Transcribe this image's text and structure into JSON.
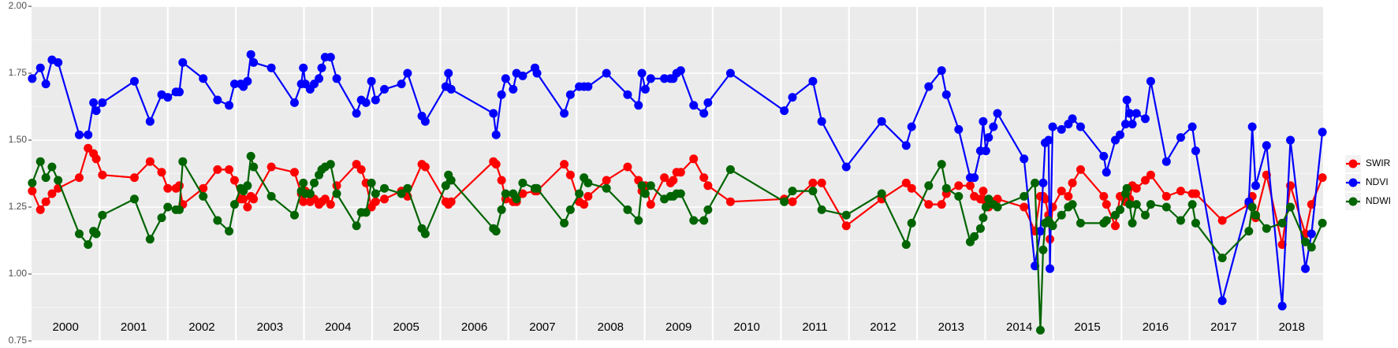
{
  "chart_data": {
    "type": "line",
    "x": [
      2000.01,
      2000.13,
      2000.21,
      2000.3,
      2000.39,
      2000.7,
      2000.83,
      2000.91,
      2000.95,
      2001.04,
      2001.51,
      2001.74,
      2001.91,
      2002.0,
      2002.12,
      2002.17,
      2002.22,
      2002.52,
      2002.73,
      2002.9,
      2002.98,
      2003.07,
      2003.11,
      2003.17,
      2003.22,
      2003.26,
      2003.52,
      2003.86,
      2003.96,
      2003.99,
      2004.02,
      2004.09,
      2004.15,
      2004.22,
      2004.26,
      2004.31,
      2004.39,
      2004.48,
      2004.77,
      2004.84,
      2004.91,
      2004.99,
      2005.05,
      2005.18,
      2005.43,
      2005.52,
      2005.73,
      2005.78,
      2006.08,
      2006.12,
      2006.16,
      2006.78,
      2006.82,
      2006.9,
      2006.96,
      2007.07,
      2007.12,
      2007.21,
      2007.39,
      2007.42,
      2007.82,
      2007.91,
      2008.04,
      2008.11,
      2008.17,
      2008.44,
      2008.75,
      2008.91,
      2008.96,
      2009.01,
      2009.09,
      2009.29,
      2009.38,
      2009.42,
      2009.47,
      2009.53,
      2009.72,
      2009.87,
      2009.93,
      2010.26,
      2011.05,
      2011.17,
      2011.47,
      2011.6,
      2011.96,
      2012.48,
      2012.84,
      2012.92,
      2013.17,
      2013.36,
      2013.43,
      2013.61,
      2013.78,
      2013.84,
      2013.93,
      2013.97,
      2014.01,
      2014.05,
      2014.12,
      2014.18,
      2014.57,
      2014.73,
      2014.81,
      2014.85,
      2014.88,
      2014.93,
      2014.95,
      2014.99,
      2015.12,
      2015.22,
      2015.28,
      2015.4,
      2015.74,
      2015.78,
      2015.91,
      2015.98,
      2016.06,
      2016.08,
      2016.12,
      2016.16,
      2016.22,
      2016.35,
      2016.43,
      2016.66,
      2016.87,
      2017.04,
      2017.09,
      2017.48,
      2017.87,
      2017.92,
      2017.97,
      2018.13,
      2018.36,
      2018.48,
      2018.7,
      2018.79,
      2018.95
    ],
    "series": [
      {
        "name": "SWIR",
        "color": "#ff0000",
        "values": [
          1.31,
          1.24,
          1.27,
          1.3,
          1.32,
          1.36,
          1.47,
          1.45,
          1.43,
          1.37,
          1.36,
          1.42,
          1.38,
          1.32,
          1.32,
          1.33,
          1.26,
          1.32,
          1.39,
          1.39,
          1.35,
          1.28,
          1.28,
          1.25,
          1.29,
          1.28,
          1.4,
          1.38,
          1.3,
          1.27,
          1.31,
          1.27,
          1.28,
          1.26,
          1.27,
          1.28,
          1.26,
          1.33,
          1.41,
          1.39,
          1.34,
          1.25,
          1.27,
          1.28,
          1.31,
          1.29,
          1.41,
          1.4,
          1.27,
          1.26,
          1.27,
          1.42,
          1.41,
          1.35,
          1.28,
          1.27,
          1.27,
          1.3,
          1.31,
          1.31,
          1.41,
          1.37,
          1.27,
          1.26,
          1.29,
          1.35,
          1.4,
          1.35,
          1.31,
          1.33,
          1.26,
          1.36,
          1.34,
          1.35,
          1.38,
          1.38,
          1.43,
          1.36,
          1.33,
          1.27,
          1.28,
          1.27,
          1.34,
          1.34,
          1.18,
          1.28,
          1.34,
          1.32,
          1.26,
          1.26,
          1.3,
          1.33,
          1.33,
          1.29,
          1.28,
          1.31,
          1.27,
          1.25,
          1.27,
          1.28,
          1.25,
          1.16,
          1.29,
          1.29,
          1.28,
          1.22,
          1.13,
          1.25,
          1.31,
          1.29,
          1.34,
          1.39,
          1.29,
          1.26,
          1.18,
          1.29,
          1.27,
          1.29,
          1.28,
          1.33,
          1.32,
          1.35,
          1.37,
          1.29,
          1.31,
          1.3,
          1.3,
          1.2,
          1.26,
          1.29,
          1.21,
          1.37,
          1.11,
          1.33,
          1.15,
          1.26,
          1.36
        ]
      },
      {
        "name": "NDVI",
        "color": "#0000ff",
        "values": [
          1.73,
          1.77,
          1.71,
          1.8,
          1.79,
          1.52,
          1.52,
          1.64,
          1.61,
          1.64,
          1.72,
          1.57,
          1.67,
          1.66,
          1.68,
          1.68,
          1.79,
          1.73,
          1.65,
          1.63,
          1.71,
          1.71,
          1.7,
          1.72,
          1.82,
          1.79,
          1.77,
          1.64,
          1.71,
          1.77,
          1.71,
          1.69,
          1.71,
          1.73,
          1.77,
          1.81,
          1.81,
          1.73,
          1.6,
          1.65,
          1.64,
          1.72,
          1.65,
          1.69,
          1.71,
          1.75,
          1.59,
          1.57,
          1.7,
          1.75,
          1.69,
          1.6,
          1.52,
          1.67,
          1.73,
          1.69,
          1.75,
          1.74,
          1.77,
          1.75,
          1.6,
          1.67,
          1.7,
          1.7,
          1.7,
          1.75,
          1.67,
          1.63,
          1.75,
          1.69,
          1.73,
          1.73,
          1.73,
          1.73,
          1.75,
          1.76,
          1.63,
          1.6,
          1.64,
          1.75,
          1.61,
          1.66,
          1.72,
          1.57,
          1.4,
          1.57,
          1.48,
          1.55,
          1.7,
          1.76,
          1.67,
          1.54,
          1.36,
          1.36,
          1.46,
          1.57,
          1.46,
          1.51,
          1.55,
          1.6,
          1.43,
          1.03,
          1.16,
          1.34,
          1.49,
          1.5,
          1.02,
          1.55,
          1.54,
          1.56,
          1.58,
          1.55,
          1.44,
          1.38,
          1.5,
          1.52,
          1.56,
          1.65,
          1.6,
          1.56,
          1.6,
          1.58,
          1.72,
          1.42,
          1.51,
          1.55,
          1.46,
          0.9,
          1.27,
          1.55,
          1.33,
          1.48,
          0.88,
          1.5,
          1.02,
          1.15,
          1.53
        ]
      },
      {
        "name": "NDWI",
        "color": "#006400",
        "values": [
          1.34,
          1.42,
          1.36,
          1.4,
          1.35,
          1.15,
          1.11,
          1.16,
          1.15,
          1.22,
          1.28,
          1.13,
          1.21,
          1.25,
          1.24,
          1.24,
          1.42,
          1.29,
          1.2,
          1.16,
          1.26,
          1.32,
          1.31,
          1.33,
          1.44,
          1.4,
          1.29,
          1.22,
          1.31,
          1.34,
          1.3,
          1.3,
          1.34,
          1.37,
          1.39,
          1.4,
          1.41,
          1.3,
          1.18,
          1.23,
          1.23,
          1.34,
          1.3,
          1.32,
          1.3,
          1.32,
          1.17,
          1.15,
          1.33,
          1.37,
          1.35,
          1.17,
          1.16,
          1.24,
          1.3,
          1.3,
          1.28,
          1.34,
          1.32,
          1.32,
          1.19,
          1.24,
          1.3,
          1.36,
          1.34,
          1.32,
          1.24,
          1.2,
          1.33,
          1.3,
          1.33,
          1.28,
          1.29,
          1.29,
          1.3,
          1.3,
          1.2,
          1.2,
          1.24,
          1.39,
          1.27,
          1.31,
          1.31,
          1.24,
          1.22,
          1.3,
          1.11,
          1.19,
          1.33,
          1.41,
          1.32,
          1.29,
          1.12,
          1.14,
          1.17,
          1.21,
          1.25,
          1.28,
          1.26,
          1.25,
          1.29,
          1.34,
          0.79,
          1.09,
          1.19,
          1.2,
          1.19,
          1.18,
          1.22,
          1.25,
          1.26,
          1.19,
          1.19,
          1.2,
          1.22,
          1.24,
          1.3,
          1.32,
          1.26,
          1.19,
          1.26,
          1.22,
          1.26,
          1.25,
          1.2,
          1.26,
          1.19,
          1.06,
          1.16,
          1.25,
          1.22,
          1.17,
          1.19,
          1.25,
          1.12,
          1.1,
          1.19
        ]
      }
    ],
    "xlim": [
      2000,
      2018.96
    ],
    "xticks": [
      2001,
      2002,
      2003,
      2004,
      2005,
      2006,
      2007,
      2008,
      2009,
      2010,
      2011,
      2012,
      2013,
      2014,
      2015,
      2016,
      2017,
      2018
    ],
    "year_labels": [
      2000,
      2001,
      2002,
      2003,
      2004,
      2005,
      2006,
      2007,
      2008,
      2009,
      2010,
      2011,
      2012,
      2013,
      2014,
      2015,
      2016,
      2017,
      2018
    ],
    "ylim": [
      0.75,
      2.0
    ],
    "yticks": [
      0.75,
      {
        "value": 1.0,
        "label": "1.00"
      },
      1.25,
      {
        "value": 1.5,
        "label": "1.50"
      },
      1.75,
      {
        "value": 2.0,
        "label": "2.00"
      }
    ],
    "grid": true,
    "legend": "right"
  }
}
